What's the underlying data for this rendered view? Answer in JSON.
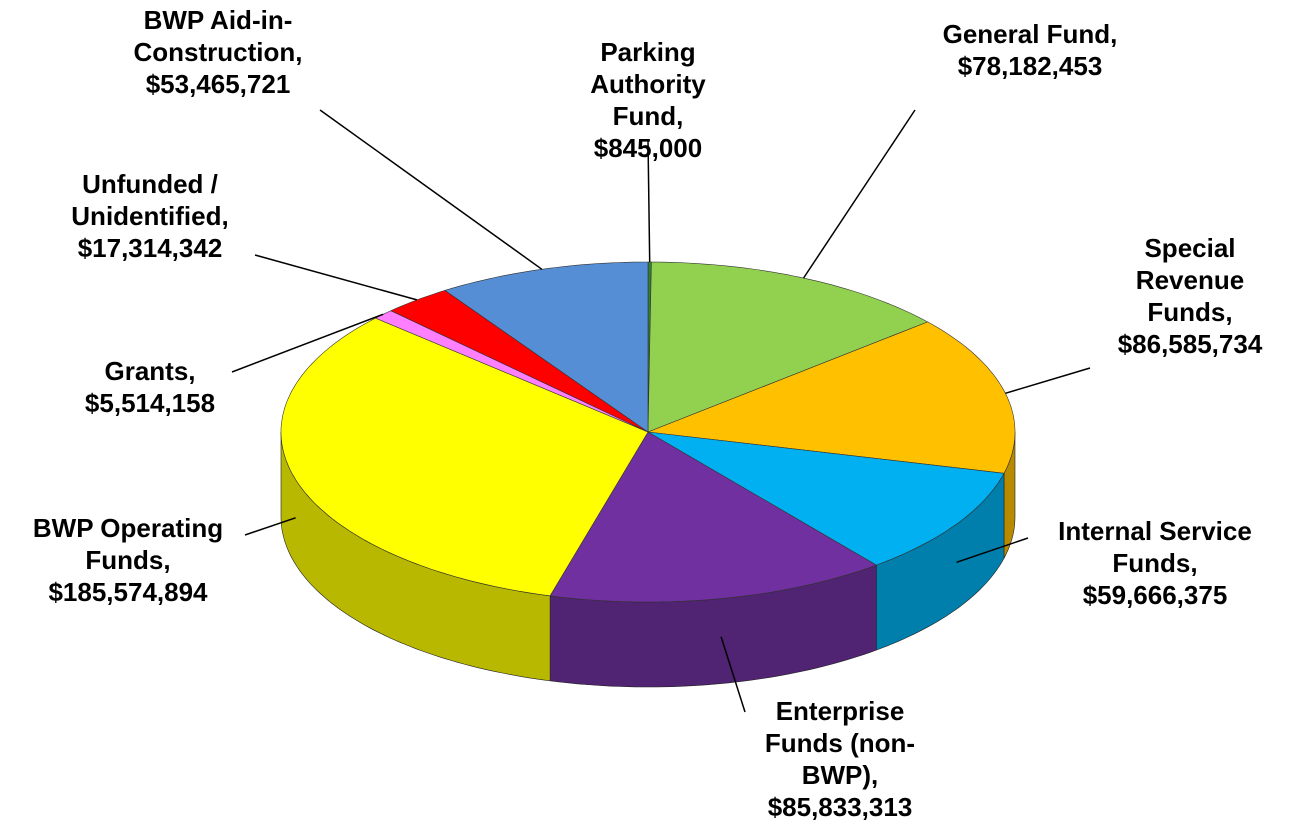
{
  "chart_data": {
    "type": "pie3d",
    "categories": [
      "Parking Authority Fund,",
      "General Fund,",
      "Special Revenue Funds,",
      "Internal Service Funds,",
      "Enterprise Funds (non-BWP),",
      "BWP Operating Funds,",
      "Grants,",
      "Unfunded / Unidentified,",
      "BWP Aid-in-Construction,"
    ],
    "values": [
      845000,
      78182453,
      86585734,
      59666375,
      85833313,
      185574894,
      5514158,
      17314342,
      53465721
    ],
    "value_labels": [
      "$845,000",
      "$78,182,453",
      "$86,585,734",
      "$59,666,375",
      "$85,833,313",
      "$185,574,894",
      "$5,514,158",
      "$17,314,342",
      "$53,465,721"
    ],
    "colors": [
      "#2f7f3a",
      "#92d050",
      "#ffc000",
      "#00b0f0",
      "#7030a0",
      "#ffff00",
      "#ff7fff",
      "#ff0000",
      "#558ed5"
    ]
  }
}
